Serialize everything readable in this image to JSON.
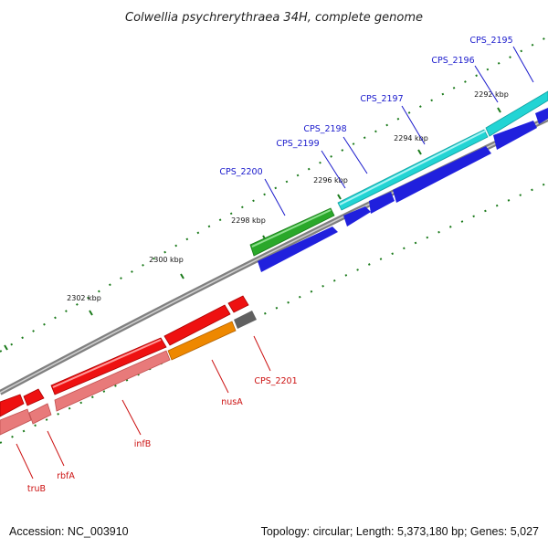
{
  "title": "Colwellia psychrerythraea 34H, complete genome",
  "accession": "Accession: NC_003910",
  "summary": "Topology: circular; Length: 5,373,180 bp; Genes: 5,027",
  "ticks": [
    "2292 kbp",
    "2294 kbp",
    "2296 kbp",
    "2298 kbp",
    "2300 kbp",
    "2302 kbp"
  ],
  "colors": {
    "backbone": "#808080",
    "tick_dots": "#1a7a1a",
    "forward_cds": "#2020dd",
    "cyan_cds": "#22d4d4",
    "green_cds": "#2aa82a",
    "red_cds": "#ee1111",
    "pink_cds": "#e87a7a",
    "orange_cds": "#ee8800",
    "grey_cds": "#606060"
  },
  "genes": [
    {
      "label": "CPS_2195",
      "color": "blue"
    },
    {
      "label": "CPS_2196",
      "color": "blue"
    },
    {
      "label": "CPS_2197",
      "color": "blue"
    },
    {
      "label": "CPS_2198",
      "color": "blue"
    },
    {
      "label": "CPS_2199",
      "color": "blue"
    },
    {
      "label": "CPS_2200",
      "color": "blue"
    },
    {
      "label": "CPS_2201",
      "color": "red"
    },
    {
      "label": "nusA",
      "color": "red"
    },
    {
      "label": "infB",
      "color": "red"
    },
    {
      "label": "rbfA",
      "color": "red"
    },
    {
      "label": "truB",
      "color": "red"
    }
  ]
}
